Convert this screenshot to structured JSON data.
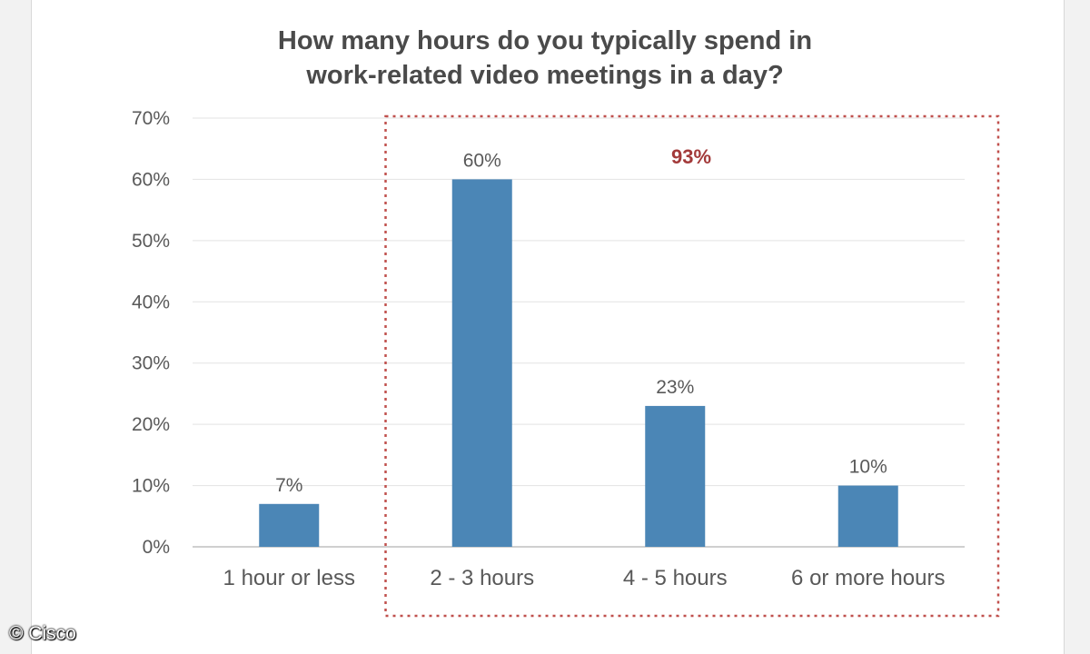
{
  "chart_data": {
    "type": "bar",
    "title_lines": [
      "How many hours do you typically spend in",
      "work-related video meetings in a day?"
    ],
    "categories": [
      "1 hour or less",
      "2 - 3 hours",
      "4 - 5 hours",
      "6 or more hours"
    ],
    "values": [
      7,
      60,
      23,
      10
    ],
    "data_labels": [
      "7%",
      "60%",
      "23%",
      "10%"
    ],
    "ylim": [
      0,
      70
    ],
    "yticks": [
      0,
      10,
      20,
      30,
      40,
      50,
      60,
      70
    ],
    "ytick_labels": [
      "0%",
      "10%",
      "20%",
      "30%",
      "40%",
      "50%",
      "60%",
      "70%"
    ],
    "grid": true,
    "bar_color": "#4b86b6",
    "highlight": {
      "label": "93%",
      "categories": [
        "2 - 3 hours",
        "4 - 5 hours",
        "6 or more hours"
      ],
      "color": "#c0504d"
    }
  },
  "credit": "© Cisco"
}
